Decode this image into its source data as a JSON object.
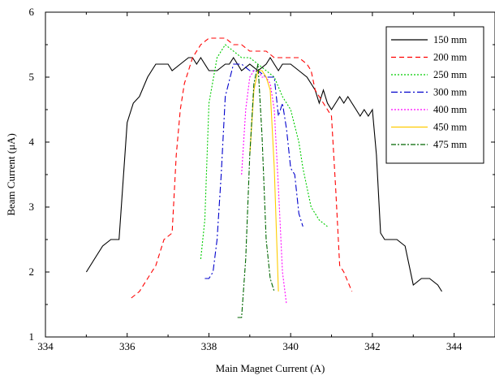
{
  "chart_data": {
    "type": "line",
    "xlabel": "Main Magnet Current (A)",
    "ylabel": "Beam Current  (μA)",
    "xlim": [
      334,
      345
    ],
    "ylim": [
      1,
      6
    ],
    "xticks": [
      334,
      336,
      338,
      340,
      342,
      344
    ],
    "yticks": [
      1,
      2,
      3,
      4,
      5,
      6
    ],
    "grid": false,
    "legend_position": "top-right",
    "series": [
      {
        "name": "150 mm",
        "color": "#000000",
        "dash": "solid",
        "x": [
          335.0,
          335.2,
          335.4,
          335.6,
          335.8,
          336.0,
          336.05,
          336.15,
          336.3,
          336.5,
          336.6,
          336.7,
          336.85,
          337.0,
          337.1,
          337.3,
          337.5,
          337.6,
          337.7,
          337.8,
          337.9,
          338.0,
          338.2,
          338.4,
          338.5,
          338.6,
          338.7,
          338.8,
          339.0,
          339.2,
          339.4,
          339.5,
          339.6,
          339.7,
          339.8,
          340.0,
          340.2,
          340.4,
          340.5,
          340.6,
          340.7,
          340.8,
          340.9,
          341.0,
          341.1,
          341.2,
          341.3,
          341.4,
          341.5,
          341.6,
          341.7,
          341.8,
          341.9,
          342.0,
          342.1,
          342.2,
          342.3,
          342.4,
          342.6,
          342.8,
          343.0,
          343.2,
          343.4,
          343.6,
          343.7
        ],
        "y": [
          2.0,
          2.2,
          2.4,
          2.5,
          2.5,
          4.3,
          4.4,
          4.6,
          4.7,
          5.0,
          5.1,
          5.2,
          5.2,
          5.2,
          5.1,
          5.2,
          5.3,
          5.3,
          5.2,
          5.3,
          5.2,
          5.1,
          5.1,
          5.2,
          5.2,
          5.3,
          5.2,
          5.1,
          5.2,
          5.1,
          5.2,
          5.3,
          5.2,
          5.1,
          5.2,
          5.2,
          5.1,
          5.0,
          4.9,
          4.8,
          4.6,
          4.8,
          4.6,
          4.5,
          4.6,
          4.7,
          4.6,
          4.7,
          4.6,
          4.5,
          4.4,
          4.5,
          4.4,
          4.5,
          3.8,
          2.6,
          2.5,
          2.5,
          2.5,
          2.4,
          1.8,
          1.9,
          1.9,
          1.8,
          1.7
        ]
      },
      {
        "name": "200 mm",
        "color": "#ff0000",
        "dash": "6,4",
        "x": [
          336.1,
          336.3,
          336.5,
          336.7,
          336.9,
          337.1,
          337.2,
          337.3,
          337.4,
          337.6,
          337.8,
          338.0,
          338.2,
          338.4,
          338.6,
          338.8,
          339.0,
          339.2,
          339.4,
          339.6,
          339.8,
          340.0,
          340.2,
          340.4,
          340.5,
          340.6,
          340.8,
          341.0,
          341.1,
          341.2,
          341.3,
          341.5
        ],
        "y": [
          1.6,
          1.7,
          1.9,
          2.1,
          2.5,
          2.6,
          3.8,
          4.5,
          4.9,
          5.3,
          5.5,
          5.6,
          5.6,
          5.6,
          5.5,
          5.5,
          5.4,
          5.4,
          5.4,
          5.3,
          5.3,
          5.3,
          5.3,
          5.2,
          5.1,
          4.8,
          4.6,
          4.4,
          3.3,
          2.1,
          2.0,
          1.7
        ]
      },
      {
        "name": "250 mm",
        "color": "#00cc00",
        "dash": "2,2",
        "x": [
          337.8,
          337.9,
          338.0,
          338.2,
          338.4,
          338.6,
          338.8,
          339.0,
          339.2,
          339.4,
          339.6,
          339.8,
          340.0,
          340.2,
          340.3,
          340.4,
          340.5,
          340.6,
          340.7,
          340.9
        ],
        "y": [
          2.2,
          2.8,
          4.6,
          5.3,
          5.5,
          5.4,
          5.3,
          5.3,
          5.2,
          5.1,
          5.0,
          4.7,
          4.5,
          4.0,
          3.6,
          3.3,
          3.0,
          2.9,
          2.8,
          2.7
        ]
      },
      {
        "name": "300 mm",
        "color": "#0000cc",
        "dash": "8,3,2,3",
        "x": [
          337.9,
          338.0,
          338.1,
          338.2,
          338.3,
          338.4,
          338.6,
          338.8,
          339.0,
          339.2,
          339.4,
          339.6,
          339.7,
          339.8,
          339.9,
          340.0,
          340.1,
          340.2,
          340.3
        ],
        "y": [
          1.9,
          1.9,
          2.0,
          2.5,
          3.5,
          4.7,
          5.2,
          5.2,
          5.1,
          5.1,
          5.0,
          5.0,
          4.4,
          4.6,
          4.2,
          3.6,
          3.5,
          2.9,
          2.7
        ]
      },
      {
        "name": "400 mm",
        "color": "#ff00ff",
        "dash": "2,2",
        "x": [
          338.8,
          338.9,
          339.0,
          339.1,
          339.2,
          339.3,
          339.4,
          339.5,
          339.6,
          339.7,
          339.8,
          339.9
        ],
        "y": [
          3.5,
          4.5,
          5.0,
          5.1,
          5.1,
          5.0,
          5.0,
          4.9,
          4.5,
          3.3,
          2.0,
          1.5
        ]
      },
      {
        "name": "450 mm",
        "color": "#ffcc00",
        "dash": "solid",
        "x": [
          339.0,
          339.1,
          339.2,
          339.3,
          339.4,
          339.5,
          339.6,
          339.7
        ],
        "y": [
          3.8,
          4.8,
          5.1,
          5.1,
          5.0,
          4.8,
          3.6,
          1.7
        ]
      },
      {
        "name": "475 mm",
        "color": "#006600",
        "dash": "6,2,2,2",
        "x": [
          338.7,
          338.8,
          338.9,
          339.0,
          339.1,
          339.2,
          339.3,
          339.4,
          339.5,
          339.6
        ],
        "y": [
          1.3,
          1.3,
          2.2,
          3.8,
          4.9,
          5.2,
          4.1,
          2.5,
          1.9,
          1.7
        ]
      }
    ]
  }
}
